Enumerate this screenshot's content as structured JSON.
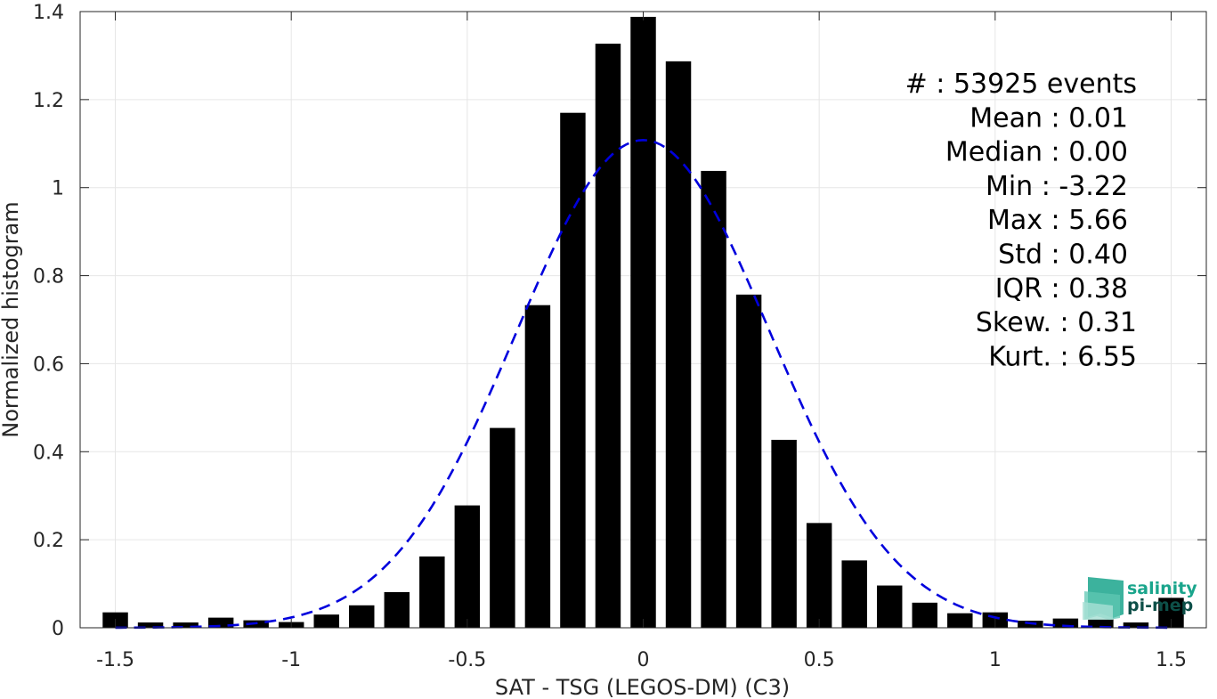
{
  "chart_data": {
    "type": "bar",
    "xlabel": "SAT - TSG (LEGOS-DM) (C3)",
    "ylabel": "Normalized histogram",
    "xlim": [
      -1.6,
      1.6
    ],
    "ylim": [
      0,
      1.4
    ],
    "grid": true,
    "x_ticks": [
      -1.5,
      -1,
      -0.5,
      0,
      0.5,
      1,
      1.5
    ],
    "x_tick_labels": [
      "-1.5",
      "-1",
      "-0.5",
      "0",
      "0.5",
      "1",
      "1.5"
    ],
    "y_ticks": [
      0,
      0.2,
      0.4,
      0.6,
      0.8,
      1,
      1.2,
      1.4
    ],
    "y_tick_labels": [
      "0",
      "0.2",
      "0.4",
      "0.6",
      "0.8",
      "1",
      "1.2",
      "1.4"
    ],
    "bin_width": 0.1,
    "x": [
      -1.5,
      -1.4,
      -1.3,
      -1.2,
      -1.1,
      -1.0,
      -0.9,
      -0.8,
      -0.7,
      -0.6,
      -0.5,
      -0.4,
      -0.3,
      -0.2,
      -0.1,
      0.0,
      0.1,
      0.2,
      0.3,
      0.4,
      0.5,
      0.6,
      0.7,
      0.8,
      0.9,
      1.0,
      1.1,
      1.2,
      1.3,
      1.4,
      1.5
    ],
    "values": [
      0.035,
      0.012,
      0.012,
      0.023,
      0.017,
      0.013,
      0.03,
      0.051,
      0.081,
      0.162,
      0.278,
      0.454,
      0.733,
      1.17,
      1.327,
      1.388,
      1.287,
      1.038,
      0.757,
      0.427,
      0.238,
      0.153,
      0.096,
      0.057,
      0.033,
      0.035,
      0.016,
      0.021,
      0.019,
      0.012,
      0.068
    ],
    "bar_color": "#000000",
    "fit": {
      "type": "gaussian",
      "mean": 0.0,
      "std": 0.36,
      "peak": 1.108,
      "color": "#0000dd",
      "style": "dashed"
    },
    "stats_lines": [
      "#  : 53925 events",
      "Mean : 0.01",
      "Median : 0.00",
      "Min : -3.22",
      "Max : 5.66",
      "Std : 0.40",
      "IQR : 0.38",
      "Skew. : 0.31",
      "Kurt. : 6.55"
    ]
  },
  "logo": {
    "line1": "salinity",
    "line2": "pi-mep",
    "color1": "#1aa58c",
    "color2": "#0d4f48"
  }
}
